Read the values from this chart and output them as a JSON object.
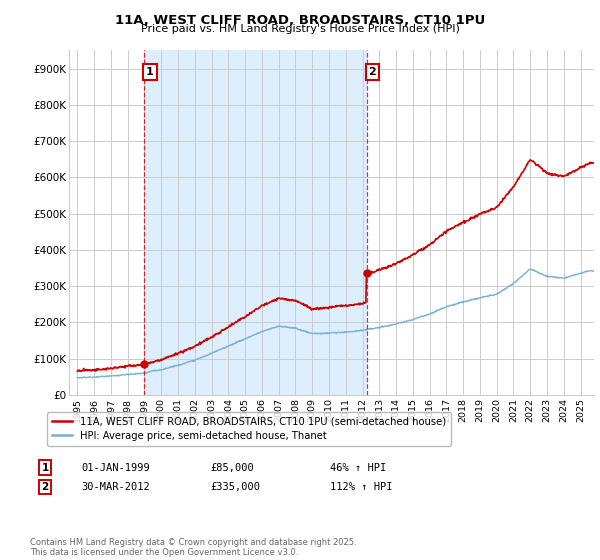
{
  "title": "11A, WEST CLIFF ROAD, BROADSTAIRS, CT10 1PU",
  "subtitle": "Price paid vs. HM Land Registry's House Price Index (HPI)",
  "red_label": "11A, WEST CLIFF ROAD, BROADSTAIRS, CT10 1PU (semi-detached house)",
  "blue_label": "HPI: Average price, semi-detached house, Thanet",
  "annotation1_date": "01-JAN-1999",
  "annotation1_price": "£85,000",
  "annotation1_hpi": "46% ↑ HPI",
  "annotation2_date": "30-MAR-2012",
  "annotation2_price": "£335,000",
  "annotation2_hpi": "112% ↑ HPI",
  "vline1_x": 1999.0,
  "vline2_x": 2012.25,
  "sale1_x": 1999.0,
  "sale1_y": 85000,
  "sale2_x": 2012.25,
  "sale2_y": 335000,
  "ylim": [
    0,
    950000
  ],
  "xlim_left": 1994.5,
  "xlim_right": 2025.8,
  "yticks": [
    0,
    100000,
    200000,
    300000,
    400000,
    500000,
    600000,
    700000,
    800000,
    900000
  ],
  "ytick_labels": [
    "£0",
    "£100K",
    "£200K",
    "£300K",
    "£400K",
    "£500K",
    "£600K",
    "£700K",
    "£800K",
    "£900K"
  ],
  "xticks": [
    1995,
    1996,
    1997,
    1998,
    1999,
    2000,
    2001,
    2002,
    2003,
    2004,
    2005,
    2006,
    2007,
    2008,
    2009,
    2010,
    2011,
    2012,
    2013,
    2014,
    2015,
    2016,
    2017,
    2018,
    2019,
    2020,
    2021,
    2022,
    2023,
    2024,
    2025
  ],
  "red_color": "#cc0000",
  "blue_color": "#7ab0d4",
  "vline_color": "#cc0000",
  "fill_color": "#ddeeff",
  "background_color": "#ffffff",
  "grid_color": "#cccccc",
  "footer": "Contains HM Land Registry data © Crown copyright and database right 2025.\nThis data is licensed under the Open Government Licence v3.0."
}
